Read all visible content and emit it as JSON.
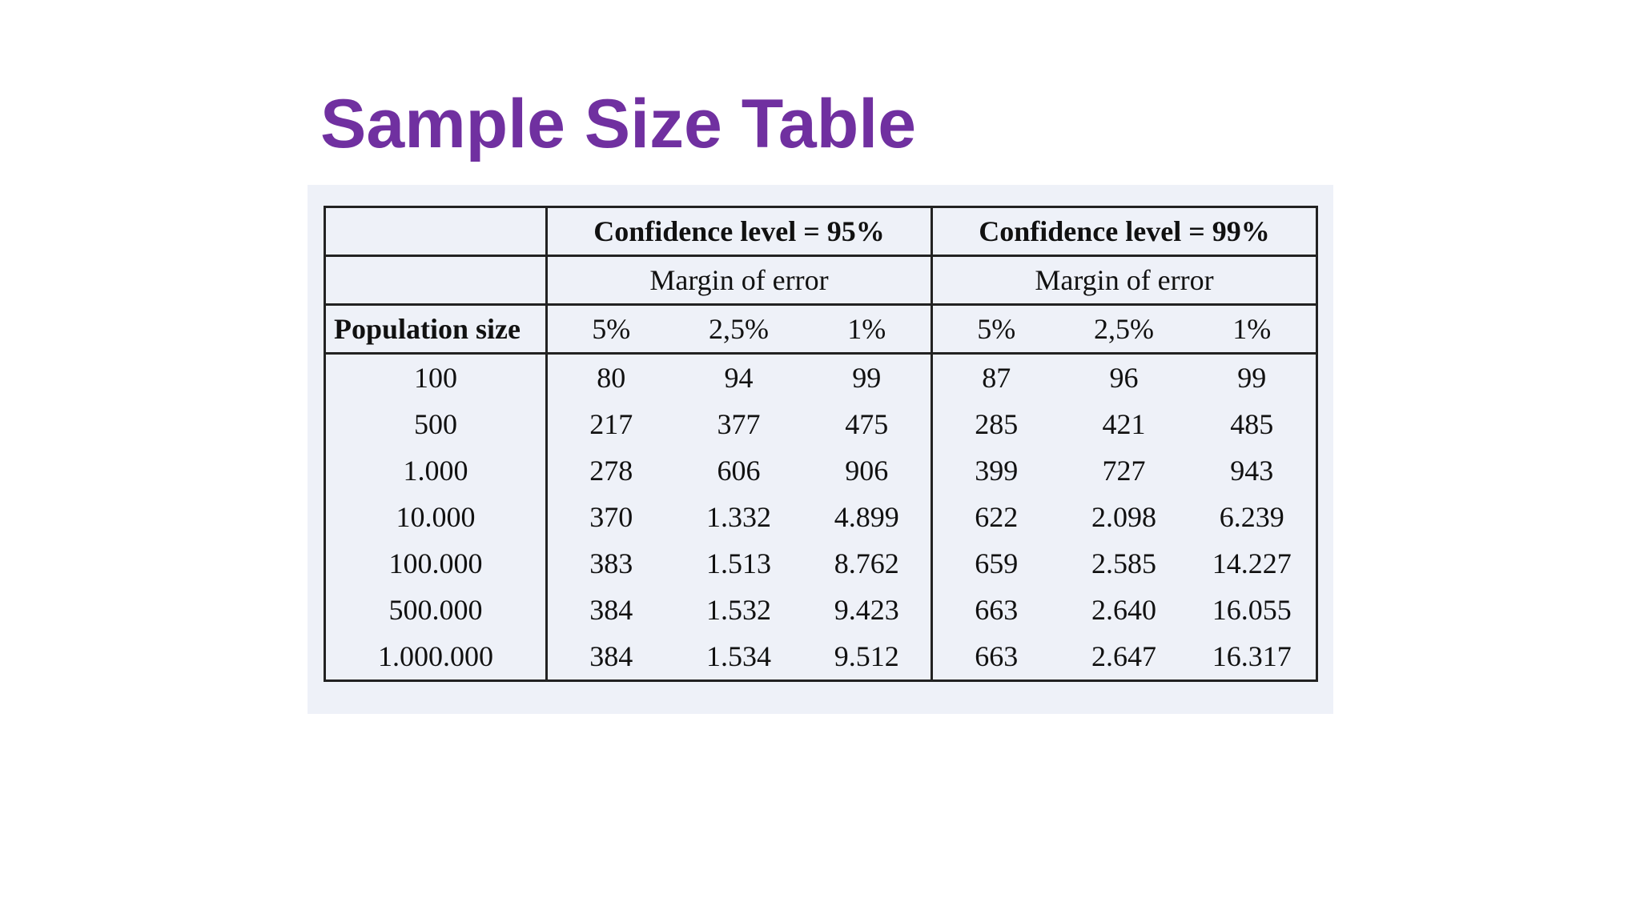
{
  "title": "Sample Size Table",
  "table": {
    "groups": [
      {
        "title": "Confidence level = 95%",
        "subtitle": "Margin of error"
      },
      {
        "title": "Confidence level = 99%",
        "subtitle": "Margin of error"
      }
    ],
    "row_header": "Population size",
    "columns": [
      "5%",
      "2,5%",
      "1%",
      "5%",
      "2,5%",
      "1%"
    ],
    "rows": [
      [
        "100",
        "80",
        "94",
        "99",
        "87",
        "96",
        "99"
      ],
      [
        "500",
        "217",
        "377",
        "475",
        "285",
        "421",
        "485"
      ],
      [
        "1.000",
        "278",
        "606",
        "906",
        "399",
        "727",
        "943"
      ],
      [
        "10.000",
        "370",
        "1.332",
        "4.899",
        "622",
        "2.098",
        "6.239"
      ],
      [
        "100.000",
        "383",
        "1.513",
        "8.762",
        "659",
        "2.585",
        "14.227"
      ],
      [
        "500.000",
        "384",
        "1.532",
        "9.423",
        "663",
        "2.640",
        "16.055"
      ],
      [
        "1.000.000",
        "384",
        "1.534",
        "9.512",
        "663",
        "2.647",
        "16.317"
      ]
    ]
  }
}
